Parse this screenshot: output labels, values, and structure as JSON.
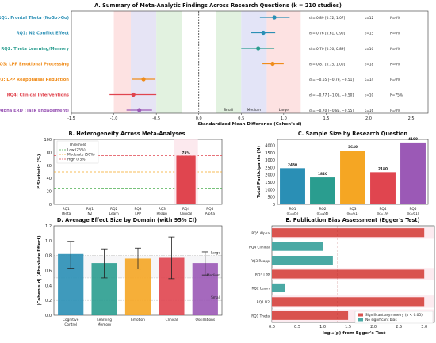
{
  "chart_data": [
    {
      "type": "scatter",
      "title": "A. Summary of Meta-Analytic Findings Across Research Questions (k = 210 studies)",
      "xlabel": "Standardized Mean Difference (Cohen's d)",
      "xlim": [
        -1.5,
        2.7
      ],
      "xticks": [
        "-1.5",
        "-1.0",
        "-0.5",
        "0.0",
        "0.5",
        "1.0",
        "1.5",
        "2.0",
        "2.5"
      ],
      "zones": [
        "Small",
        "Medium",
        "Large"
      ],
      "rows": [
        {
          "label": "RQ1: Frontal Theta (NoGo>Go)",
          "color": "#2a8fb5",
          "d": 0.89,
          "lo": 0.72,
          "hi": 1.07,
          "text": "d = 0.89 [0.72, 1.07]",
          "k": "k=12",
          "i2": "I²=0%",
          "i2_color": "#222222"
        },
        {
          "label": "RQ1: N2 Conflict Effect",
          "color": "#2a8fb5",
          "d": 0.76,
          "lo": 0.61,
          "hi": 0.9,
          "text": "d = 0.76 [0.61, 0.90]",
          "k": "k=15",
          "i2": "I²=0%",
          "i2_color": "#222222"
        },
        {
          "label": "RQ2: Theta Learning/Memory",
          "color": "#2a9d8f",
          "d": 0.7,
          "lo": 0.5,
          "hi": 0.89,
          "text": "d = 0.70 [0.50, 0.89]",
          "k": "k=10",
          "i2": "I²=0%",
          "i2_color": "#222222"
        },
        {
          "label": "RQ3: LPP Emotional Processing",
          "color": "#f08c1a",
          "d": 0.87,
          "lo": 0.75,
          "hi": 1.0,
          "text": "d = 0.87 [0.75, 1.00]",
          "k": "k=18",
          "i2": "I²=0%",
          "i2_color": "#222222"
        },
        {
          "label": "RQ3: LPP Reappraisal Reduction",
          "color": "#f08c1a",
          "d": -0.65,
          "lo": -0.79,
          "hi": -0.51,
          "text": "d = −0.65 [−0.79, −0.51]",
          "k": "k=14",
          "i2": "I²=0%",
          "i2_color": "#222222"
        },
        {
          "label": "RQ4: Clinical Interventions",
          "color": "#e0454f",
          "d": -0.77,
          "lo": -1.05,
          "hi": -0.5,
          "text": "d = −0.77 [−1.05, −0.50]",
          "k": "k=10",
          "i2": "I²=75%",
          "i2_color": "#e0454f"
        },
        {
          "label": "RQ5: Alpha ERD (Task Engagement)",
          "color": "#9b59b6",
          "d": -0.7,
          "lo": -0.85,
          "hi": -0.55,
          "text": "d = −0.70 [−0.85, −0.55]",
          "k": "k=16",
          "i2": "I²=0%",
          "i2_color": "#222222"
        }
      ]
    },
    {
      "type": "bar",
      "title": "B. Heterogeneity Across Meta-Analyses",
      "ylabel": "I² Statistic (%)",
      "ylim": [
        0,
        100
      ],
      "yticks": [
        "0",
        "20",
        "40",
        "60",
        "80",
        "100"
      ],
      "categories": [
        "RQ1 Theta",
        "RQ1 N2",
        "RQ2 Learn",
        "RQ3 LPP",
        "RQ3 Reapp",
        "RQ4 Clinical",
        "RQ5 Alpha"
      ],
      "values": [
        0,
        0,
        0,
        0,
        0,
        75,
        0
      ],
      "bar_label": "75%",
      "legend_title": "Threshold",
      "thresholds": [
        {
          "name": "Low (25%)",
          "value": 25,
          "color": "#4caf50"
        },
        {
          "name": "Moderate (50%)",
          "value": 50,
          "color": "#f5a623"
        },
        {
          "name": "High (75%)",
          "value": 75,
          "color": "#e0454f"
        }
      ]
    },
    {
      "type": "bar",
      "title": "C. Sample Size by Research Question",
      "ylabel": "Total Participants (N)",
      "ylim": [
        0,
        4400
      ],
      "yticks": [
        "0",
        "500",
        "1000",
        "1500",
        "2000",
        "2500",
        "3000",
        "3500",
        "4000"
      ],
      "categories": [
        "RQ1 (k=35)",
        "RQ2 (k=24)",
        "RQ3 (k=61)",
        "RQ4 (k=19)",
        "RQ5 (k=61)"
      ],
      "values": [
        2450,
        1820,
        3640,
        2180,
        4190
      ],
      "colors": [
        "#2a8fb5",
        "#2a9d8f",
        "#f5a623",
        "#e0454f",
        "#9b59b6"
      ]
    },
    {
      "type": "bar",
      "title": "D. Average Effect Size by Domain (with 95% CI)",
      "ylabel": "|Cohen's d| (Absolute Effect)",
      "ylim": [
        0,
        1.2
      ],
      "yticks": [
        "0.0",
        "0.2",
        "0.4",
        "0.6",
        "0.8",
        "1.0",
        "1.2"
      ],
      "categories": [
        "Cognitive Control",
        "Learning Memory",
        "Emotion",
        "Clinical",
        "Oscillations"
      ],
      "values": [
        0.82,
        0.7,
        0.76,
        0.77,
        0.7
      ],
      "ci_low": [
        0.63,
        0.5,
        0.62,
        0.49,
        0.54
      ],
      "ci_high": [
        0.99,
        0.89,
        0.9,
        1.05,
        0.85
      ],
      "colors": [
        "#2a8fb5",
        "#2a9d8f",
        "#f5a623",
        "#e0454f",
        "#9b59b6"
      ],
      "zones": [
        "Large",
        "Medium",
        "Small"
      ]
    },
    {
      "type": "bar",
      "orientation": "horizontal",
      "title": "E. Publication Bias Assessment (Egger's Test)",
      "xlabel": "-log₁₀(p) from Egger's Test",
      "xlim": [
        0,
        3.2
      ],
      "xticks": [
        "0.0",
        "0.5",
        "1.0",
        "1.5",
        "2.0",
        "2.5",
        "3.0"
      ],
      "categories": [
        "RQ5 Alpha",
        "RQ4 Clinical",
        "RQ3 Reapp",
        "RQ3 LPP",
        "RQ2 Learn",
        "RQ1 N2",
        "RQ1 Theta"
      ],
      "values": [
        3.0,
        1.0,
        1.2,
        3.0,
        0.25,
        3.0,
        1.5
      ],
      "significant": [
        true,
        false,
        false,
        true,
        false,
        true,
        true
      ],
      "threshold": 1.3,
      "legend": [
        {
          "name": "Significant asymmetry (p < 0.05)",
          "color": "#d9534f"
        },
        {
          "name": "No significant bias",
          "color": "#4aa9a4"
        }
      ]
    }
  ]
}
